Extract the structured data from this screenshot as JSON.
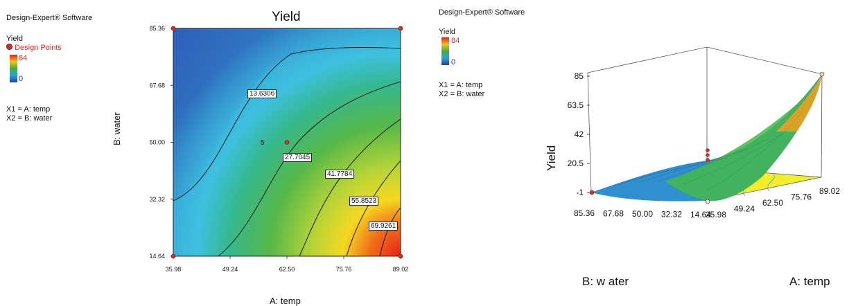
{
  "left_panel": {
    "software_label": "Design-Expert® Software",
    "response_label": "Yield",
    "design_points_label": "Design Points",
    "legend_max": "84",
    "legend_min": "0",
    "factor_x1": "X1 = A: temp",
    "factor_x2": "X2 = B: water"
  },
  "right_panel": {
    "software_label": "Design-Expert® Software",
    "response_label": "Yield",
    "legend_max": "84",
    "legend_min": "0",
    "factor_x1": "X1 = A: temp",
    "factor_x2": "X2 = B: water"
  },
  "chart_data": [
    {
      "type": "heatmap",
      "subtype": "contour",
      "title": "Yield",
      "xlabel": "A: temp",
      "ylabel": "B: water",
      "x_ticks": [
        "35.98",
        "49.24",
        "62.50",
        "75.76",
        "89.02"
      ],
      "y_ticks": [
        "14.64",
        "32.32",
        "50.00",
        "67.68",
        "85.36"
      ],
      "xlim": [
        35.98,
        89.02
      ],
      "ylim": [
        14.64,
        85.36
      ],
      "contour_levels": [
        "13.6306",
        "27.7045",
        "41.7784",
        "55.8523",
        "69.9261"
      ],
      "design_points": [
        {
          "x": 35.98,
          "y": 14.64
        },
        {
          "x": 89.02,
          "y": 14.64
        },
        {
          "x": 35.98,
          "y": 85.36
        },
        {
          "x": 89.02,
          "y": 85.36
        },
        {
          "x": 62.5,
          "y": 50.0,
          "label": "5"
        }
      ],
      "colorscale": {
        "min": 0,
        "max": 84,
        "low_color": "#2040a0",
        "high_color": "#e02010"
      }
    },
    {
      "type": "surface",
      "zlabel": "Yield",
      "xlabel": "A: temp",
      "ylabel": "B: w ater",
      "z_ticks": [
        "-1",
        "20.5",
        "42",
        "63.5",
        "85"
      ],
      "x_ticks": [
        "35.98",
        "49.24",
        "62.50",
        "75.76",
        "89.02"
      ],
      "y_ticks": [
        "14.64",
        "32.32",
        "50.00",
        "67.68",
        "85.36"
      ],
      "zlim": [
        -1,
        85
      ],
      "floor_color": "#f2ee2a"
    }
  ]
}
